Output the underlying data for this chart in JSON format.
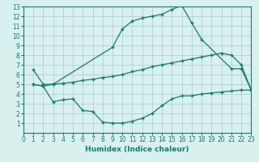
{
  "line1_x": [
    1,
    2,
    3,
    9,
    10,
    11,
    12,
    13,
    14,
    15,
    16,
    17,
    18,
    21,
    22,
    23
  ],
  "line1_y": [
    6.5,
    5.0,
    5.0,
    8.8,
    10.7,
    11.5,
    11.8,
    12.0,
    12.2,
    12.7,
    13.1,
    11.3,
    9.6,
    6.6,
    6.6,
    4.4
  ],
  "line2_x": [
    1,
    2,
    3,
    4,
    5,
    6,
    7,
    8,
    9,
    10,
    11,
    12,
    13,
    14,
    15,
    16,
    17,
    18,
    19,
    20,
    21,
    22,
    23
  ],
  "line2_y": [
    5.0,
    4.8,
    5.0,
    5.1,
    5.2,
    5.4,
    5.5,
    5.7,
    5.8,
    6.0,
    6.3,
    6.5,
    6.8,
    7.0,
    7.2,
    7.4,
    7.6,
    7.8,
    8.0,
    8.2,
    8.0,
    7.0,
    4.4
  ],
  "line3_x": [
    1,
    2,
    3,
    4,
    5,
    6,
    7,
    8,
    9,
    10,
    11,
    12,
    13,
    14,
    15,
    16,
    17,
    18,
    19,
    20,
    21,
    22,
    23
  ],
  "line3_y": [
    5.0,
    4.8,
    3.2,
    3.4,
    3.5,
    2.3,
    2.2,
    1.1,
    1.0,
    1.0,
    1.2,
    1.5,
    2.0,
    2.8,
    3.5,
    3.8,
    3.8,
    4.0,
    4.1,
    4.2,
    4.3,
    4.4,
    4.4
  ],
  "line_color": "#1a7a6a",
  "bg_color": "#d8f0ee",
  "grid_color": "#aacccc",
  "xlabel": "Humidex (Indice chaleur)",
  "xlim": [
    0,
    23
  ],
  "ylim": [
    0,
    13
  ],
  "xticks": [
    0,
    1,
    2,
    3,
    4,
    5,
    6,
    7,
    8,
    9,
    10,
    11,
    12,
    13,
    14,
    15,
    16,
    17,
    18,
    19,
    20,
    21,
    22,
    23
  ],
  "yticks": [
    1,
    2,
    3,
    4,
    5,
    6,
    7,
    8,
    9,
    10,
    11,
    12,
    13
  ],
  "xlabel_fontsize": 6.5,
  "tick_fontsize": 5.5
}
